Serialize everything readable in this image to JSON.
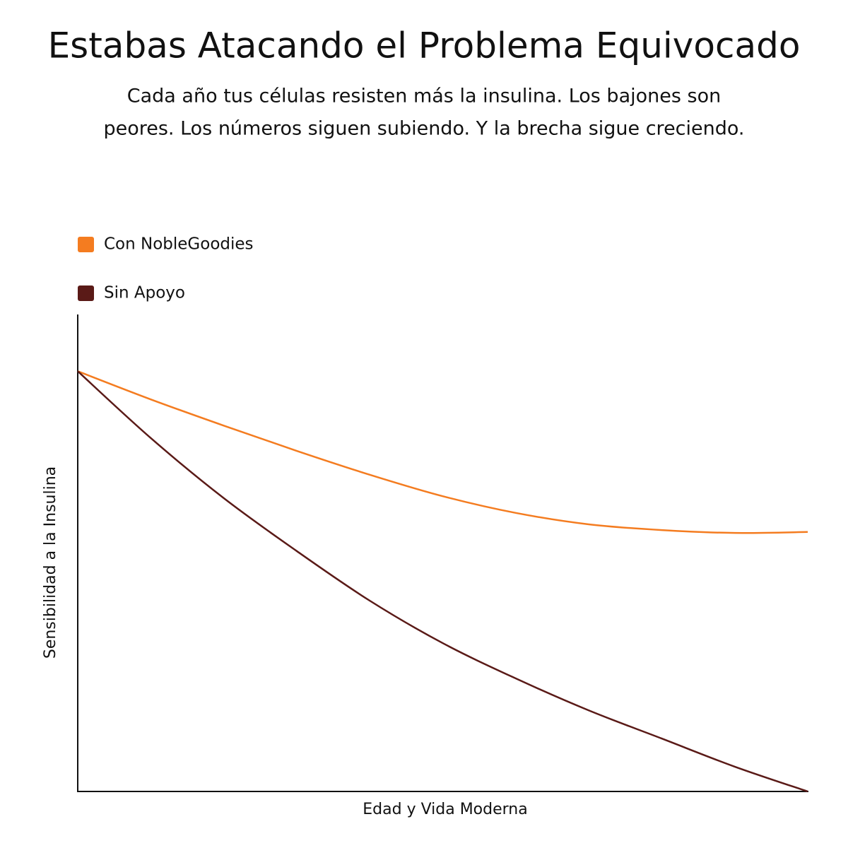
{
  "chart_data": {
    "type": "line",
    "title": "Estabas Atacando el Problema Equivocado",
    "subtitle": [
      "Cada año tus células resisten más la insulina. Los bajones son",
      "peores. Los números siguen subiendo. Y la brecha sigue creciendo."
    ],
    "xlabel": "Edad y Vida Moderna",
    "ylabel": "Sensibilidad a la Insulina",
    "x": [
      0,
      1,
      2,
      3,
      4,
      5,
      6,
      7,
      8,
      9,
      10
    ],
    "xlim": [
      0,
      10
    ],
    "ylim": [
      0,
      100
    ],
    "series": [
      {
        "name": "Con NobleGoodies",
        "color": "#f47c20",
        "values": [
          88.1,
          82.2,
          76.7,
          71.4,
          66.4,
          61.9,
          58.4,
          56.0,
          54.8,
          54.2,
          54.4
        ]
      },
      {
        "name": "Sin Apoyo",
        "color": "#5a1a17",
        "values": [
          88.1,
          74.1,
          61.5,
          50.4,
          40.0,
          31.1,
          23.7,
          17.0,
          11.1,
          5.2,
          0
        ]
      }
    ]
  }
}
